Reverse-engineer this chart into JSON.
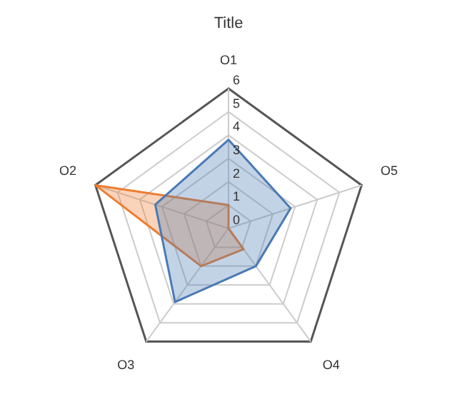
{
  "chart_data": {
    "type": "radar",
    "title": "Title",
    "categories": [
      "O1",
      "O5",
      "O4",
      "O3",
      "O2"
    ],
    "series": [
      {
        "color": "#4a7ab5",
        "values": [
          3.8,
          2.8,
          2,
          3.9,
          3.3
        ]
      },
      {
        "color": "#ed7d31",
        "values": [
          1,
          0,
          1.1,
          2,
          6
        ]
      }
    ],
    "ylim": [
      0,
      6
    ],
    "yticks": [
      0,
      1,
      2,
      3,
      4,
      5,
      6
    ],
    "grid": true,
    "legend": false,
    "marker": "none"
  }
}
